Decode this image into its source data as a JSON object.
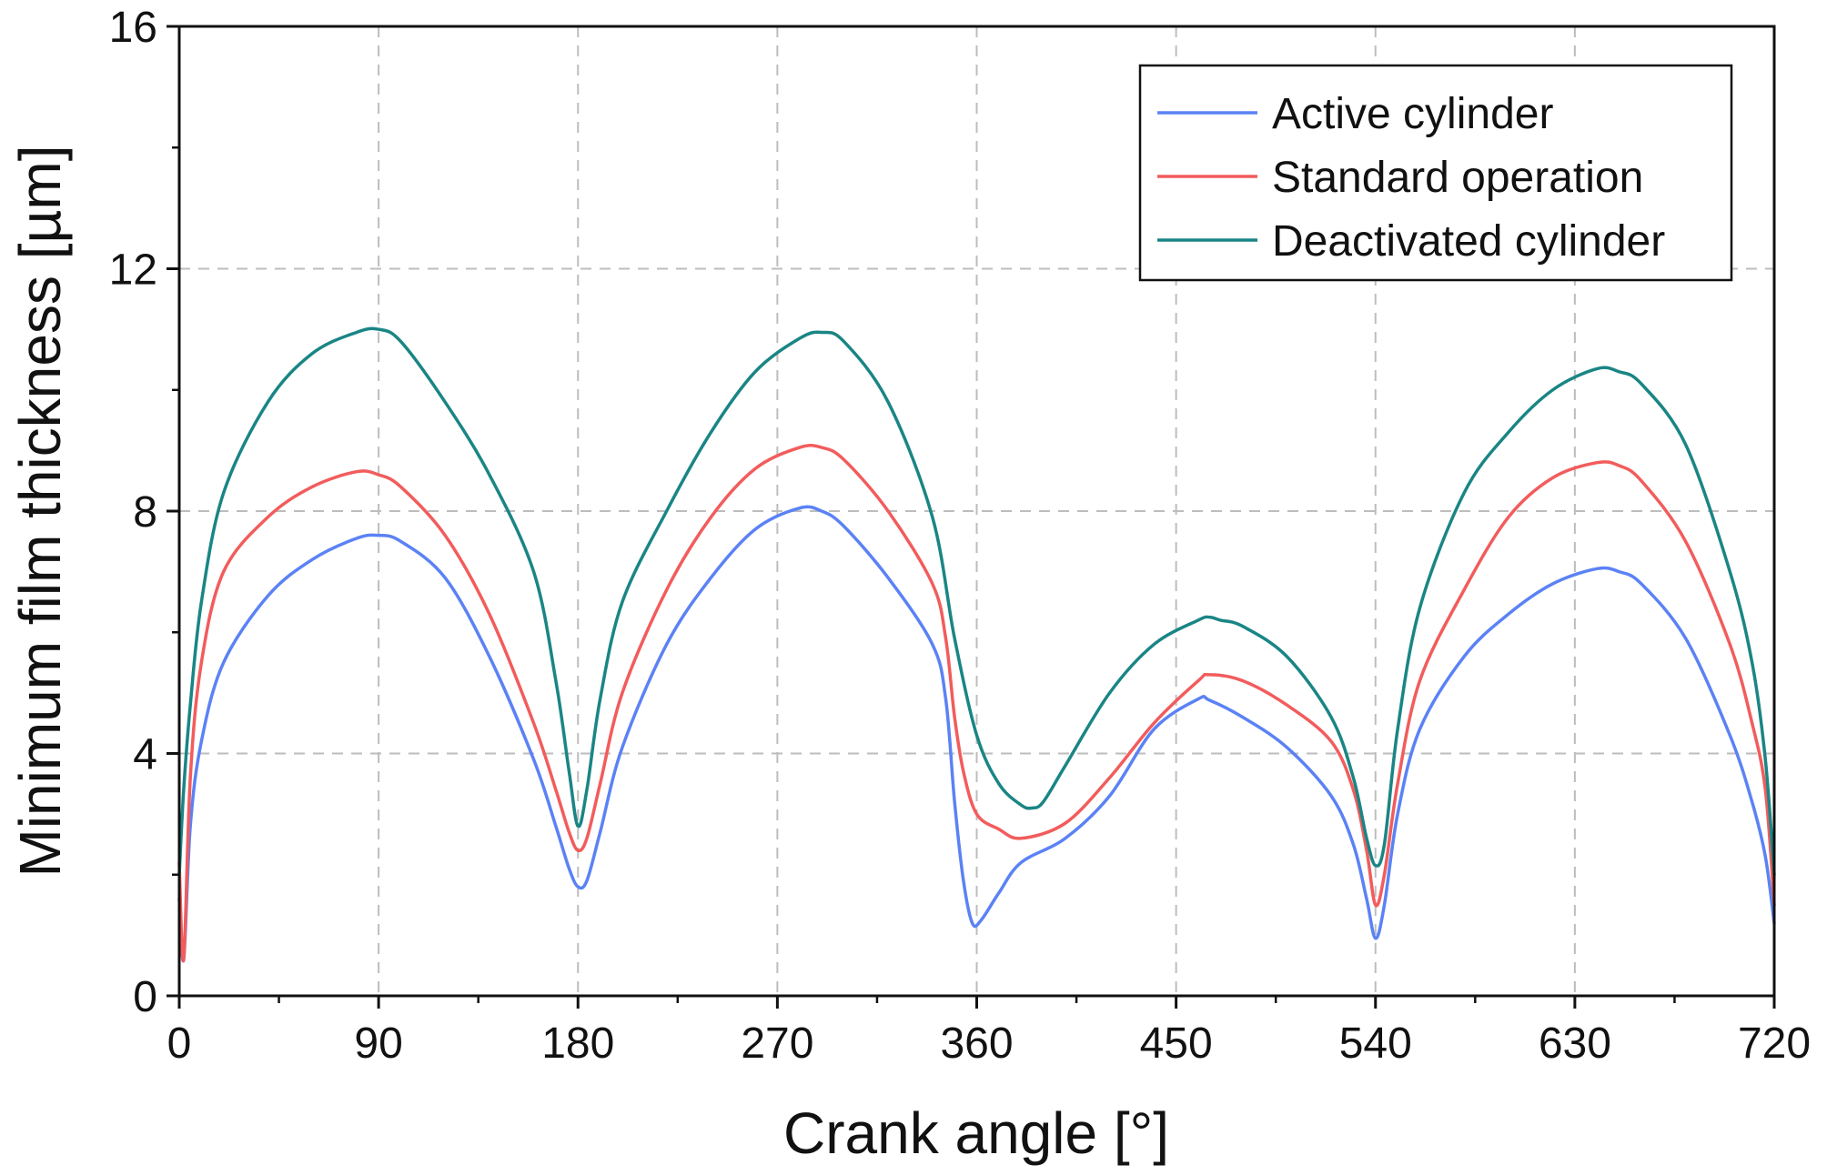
{
  "chart_data": {
    "type": "line",
    "title": "",
    "xlabel": "Crank angle [°]",
    "ylabel": "Minimum film thickness [µm]",
    "xlim": [
      0,
      720
    ],
    "ylim": [
      0,
      16
    ],
    "xticks": [
      0,
      90,
      180,
      270,
      360,
      450,
      540,
      630,
      720
    ],
    "xtick_labels": [
      "0",
      "90",
      "180",
      "270",
      "360",
      "450",
      "540",
      "630",
      "720"
    ],
    "yticks": [
      0,
      4,
      8,
      12,
      16
    ],
    "ytick_labels": [
      "0",
      "4",
      "8",
      "12",
      "16"
    ],
    "grid": true,
    "legend_position": "top-right",
    "series": [
      {
        "name": "Active cylinder",
        "color": "#5b82f5",
        "x": [
          0,
          2,
          5,
          10,
          20,
          40,
          60,
          80,
          90,
          100,
          120,
          140,
          160,
          170,
          176,
          180,
          184,
          190,
          200,
          220,
          240,
          260,
          280,
          290,
          300,
          320,
          340,
          346,
          350,
          354,
          358,
          362,
          370,
          380,
          400,
          420,
          440,
          460,
          465,
          480,
          500,
          520,
          530,
          536,
          540,
          544,
          550,
          560,
          580,
          600,
          620,
          640,
          650,
          660,
          680,
          700,
          710,
          716,
          720
        ],
        "y": [
          1.6,
          0.6,
          2.8,
          4.2,
          5.5,
          6.6,
          7.2,
          7.55,
          7.6,
          7.5,
          6.9,
          5.6,
          3.9,
          2.8,
          2.1,
          1.8,
          1.9,
          2.7,
          4.1,
          5.8,
          6.9,
          7.7,
          8.05,
          8.0,
          7.75,
          6.9,
          5.8,
          4.9,
          3.2,
          1.9,
          1.2,
          1.25,
          1.7,
          2.2,
          2.6,
          3.3,
          4.4,
          4.9,
          4.88,
          4.6,
          4.1,
          3.3,
          2.5,
          1.6,
          0.95,
          1.5,
          3.0,
          4.4,
          5.6,
          6.3,
          6.8,
          7.05,
          7.0,
          6.8,
          5.9,
          4.3,
          3.2,
          2.3,
          1.2
        ]
      },
      {
        "name": "Standard operation",
        "color": "#f25c5c",
        "x": [
          0,
          2,
          5,
          10,
          20,
          40,
          60,
          80,
          90,
          100,
          120,
          140,
          160,
          170,
          176,
          180,
          184,
          190,
          200,
          220,
          240,
          260,
          280,
          290,
          300,
          320,
          340,
          346,
          350,
          354,
          360,
          370,
          380,
          400,
          420,
          440,
          460,
          465,
          480,
          500,
          520,
          530,
          536,
          540,
          544,
          550,
          560,
          580,
          600,
          620,
          640,
          650,
          660,
          680,
          700,
          710,
          716,
          720
        ],
        "y": [
          2.2,
          0.6,
          3.6,
          5.5,
          7.0,
          7.9,
          8.4,
          8.65,
          8.6,
          8.4,
          7.6,
          6.3,
          4.5,
          3.4,
          2.7,
          2.4,
          2.6,
          3.5,
          5.0,
          6.7,
          7.9,
          8.7,
          9.05,
          9.05,
          8.85,
          8.0,
          6.8,
          5.9,
          4.6,
          3.7,
          3.0,
          2.75,
          2.6,
          2.85,
          3.6,
          4.5,
          5.2,
          5.3,
          5.2,
          4.8,
          4.2,
          3.4,
          2.4,
          1.5,
          2.0,
          3.5,
          5.2,
          6.7,
          7.9,
          8.55,
          8.8,
          8.75,
          8.5,
          7.5,
          5.8,
          4.5,
          3.4,
          1.5
        ]
      },
      {
        "name": "Deactivated cylinder",
        "color": "#1a8585",
        "x": [
          0,
          2,
          5,
          10,
          20,
          40,
          60,
          80,
          90,
          100,
          120,
          140,
          160,
          170,
          176,
          180,
          184,
          190,
          200,
          220,
          240,
          260,
          280,
          290,
          300,
          320,
          340,
          350,
          360,
          370,
          380,
          385,
          390,
          400,
          420,
          440,
          460,
          465,
          470,
          480,
          500,
          520,
          530,
          536,
          540,
          544,
          550,
          560,
          580,
          600,
          620,
          640,
          650,
          660,
          680,
          700,
          710,
          716,
          720
        ],
        "y": [
          2.0,
          3.4,
          4.8,
          6.5,
          8.3,
          9.8,
          10.6,
          10.95,
          11.0,
          10.8,
          9.8,
          8.6,
          7.0,
          5.2,
          3.7,
          2.8,
          3.4,
          4.9,
          6.5,
          8.0,
          9.3,
          10.3,
          10.85,
          10.95,
          10.8,
          9.8,
          7.9,
          5.9,
          4.3,
          3.5,
          3.15,
          3.1,
          3.2,
          3.8,
          5.0,
          5.8,
          6.2,
          6.25,
          6.2,
          6.1,
          5.6,
          4.6,
          3.6,
          2.6,
          2.15,
          2.5,
          4.4,
          6.4,
          8.3,
          9.3,
          10.0,
          10.35,
          10.3,
          10.1,
          9.1,
          7.0,
          5.5,
          3.9,
          2.0
        ]
      }
    ]
  }
}
